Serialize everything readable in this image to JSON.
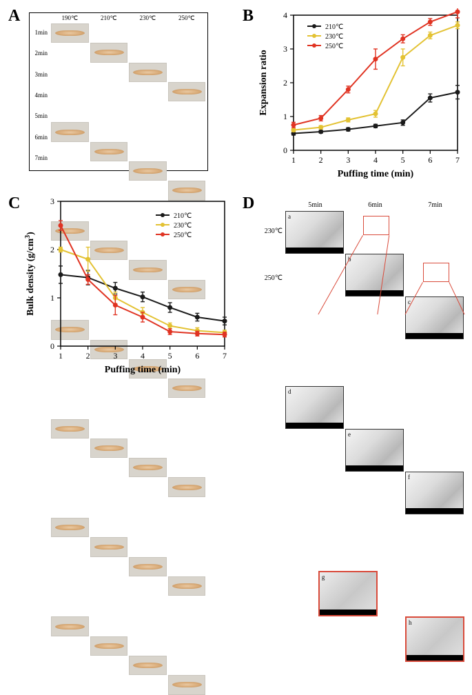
{
  "labels": {
    "A": "A",
    "B": "B",
    "C": "C",
    "D": "D"
  },
  "label_fontsize_pt": 18,
  "panelA": {
    "col_headers": [
      "190℃",
      "210℃",
      "230℃",
      "250℃"
    ],
    "row_headers": [
      "1min",
      "2min",
      "3min",
      "4min",
      "5min",
      "6min",
      "7min"
    ],
    "col_header_fontsize": 9,
    "row_header_fontsize": 9
  },
  "panelB": {
    "type": "line",
    "title": "",
    "xlabel": "Puffing time (min)",
    "ylabel": "Expansion ratio",
    "label_fontsize": 14,
    "tick_fontsize": 12,
    "xlim": [
      1,
      7
    ],
    "xtick_step": 1,
    "ylim": [
      0,
      4
    ],
    "ytick_step": 1,
    "legend_fontsize": 10,
    "line_width": 2,
    "marker_size": 3.5,
    "series": [
      {
        "name": "210℃",
        "color": "#1a1a1a",
        "x": [
          1,
          2,
          3,
          4,
          5,
          6,
          7
        ],
        "y": [
          0.5,
          0.55,
          0.62,
          0.72,
          0.82,
          1.55,
          1.72
        ],
        "err": [
          0.05,
          0.04,
          0.05,
          0.05,
          0.08,
          0.12,
          0.2
        ]
      },
      {
        "name": "230℃",
        "color": "#e3c233",
        "x": [
          1,
          2,
          3,
          4,
          5,
          6,
          7
        ],
        "y": [
          0.6,
          0.68,
          0.9,
          1.08,
          2.75,
          3.4,
          3.7
        ],
        "err": [
          0.05,
          0.05,
          0.06,
          0.1,
          0.25,
          0.1,
          0.1
        ]
      },
      {
        "name": "250℃",
        "color": "#e03322",
        "x": [
          1,
          2,
          3,
          4,
          5,
          6,
          7
        ],
        "y": [
          0.75,
          0.95,
          1.8,
          2.7,
          3.3,
          3.8,
          4.1
        ],
        "err": [
          0.08,
          0.08,
          0.1,
          0.3,
          0.12,
          0.1,
          0.18
        ]
      }
    ]
  },
  "panelC": {
    "type": "line",
    "xlabel": "Puffing time (min)",
    "ylabel": "Bulk density (g/cm³)",
    "ylabel_plain": "Bulk density (g/cm",
    "ylabel_sup": "3",
    "ylabel_close": ")",
    "label_fontsize": 14,
    "tick_fontsize": 12,
    "xlim": [
      1,
      7
    ],
    "xtick_step": 1,
    "ylim": [
      0,
      3
    ],
    "ytick_step": 1,
    "legend_fontsize": 10,
    "line_width": 2,
    "marker_size": 3.5,
    "series": [
      {
        "name": "210℃",
        "color": "#1a1a1a",
        "x": [
          1,
          2,
          3,
          4,
          5,
          6,
          7
        ],
        "y": [
          1.48,
          1.42,
          1.2,
          1.02,
          0.8,
          0.6,
          0.52
        ],
        "err": [
          0.18,
          0.15,
          0.12,
          0.1,
          0.1,
          0.08,
          0.08
        ]
      },
      {
        "name": "230℃",
        "color": "#e3c233",
        "x": [
          1,
          2,
          3,
          4,
          5,
          6,
          7
        ],
        "y": [
          2.0,
          1.8,
          1.0,
          0.7,
          0.42,
          0.32,
          0.28
        ],
        "err": [
          0.05,
          0.25,
          0.12,
          0.1,
          0.06,
          0.06,
          0.05
        ]
      },
      {
        "name": "250℃",
        "color": "#e03322",
        "x": [
          1,
          2,
          3,
          4,
          5,
          6,
          7
        ],
        "y": [
          2.5,
          1.38,
          0.85,
          0.6,
          0.3,
          0.26,
          0.24
        ],
        "err": [
          0.1,
          0.1,
          0.2,
          0.1,
          0.06,
          0.05,
          0.05
        ]
      }
    ]
  },
  "panelD": {
    "col_headers": [
      "5min",
      "6min",
      "7min"
    ],
    "row_headers": [
      "230℃",
      "250℃"
    ],
    "tags_top": [
      "a",
      "b",
      "c"
    ],
    "tags_bottom": [
      "d",
      "e",
      "f"
    ],
    "inset_tags": [
      "g",
      "h"
    ],
    "header_fontsize": 10,
    "zoom_color": "#d94a3a"
  }
}
